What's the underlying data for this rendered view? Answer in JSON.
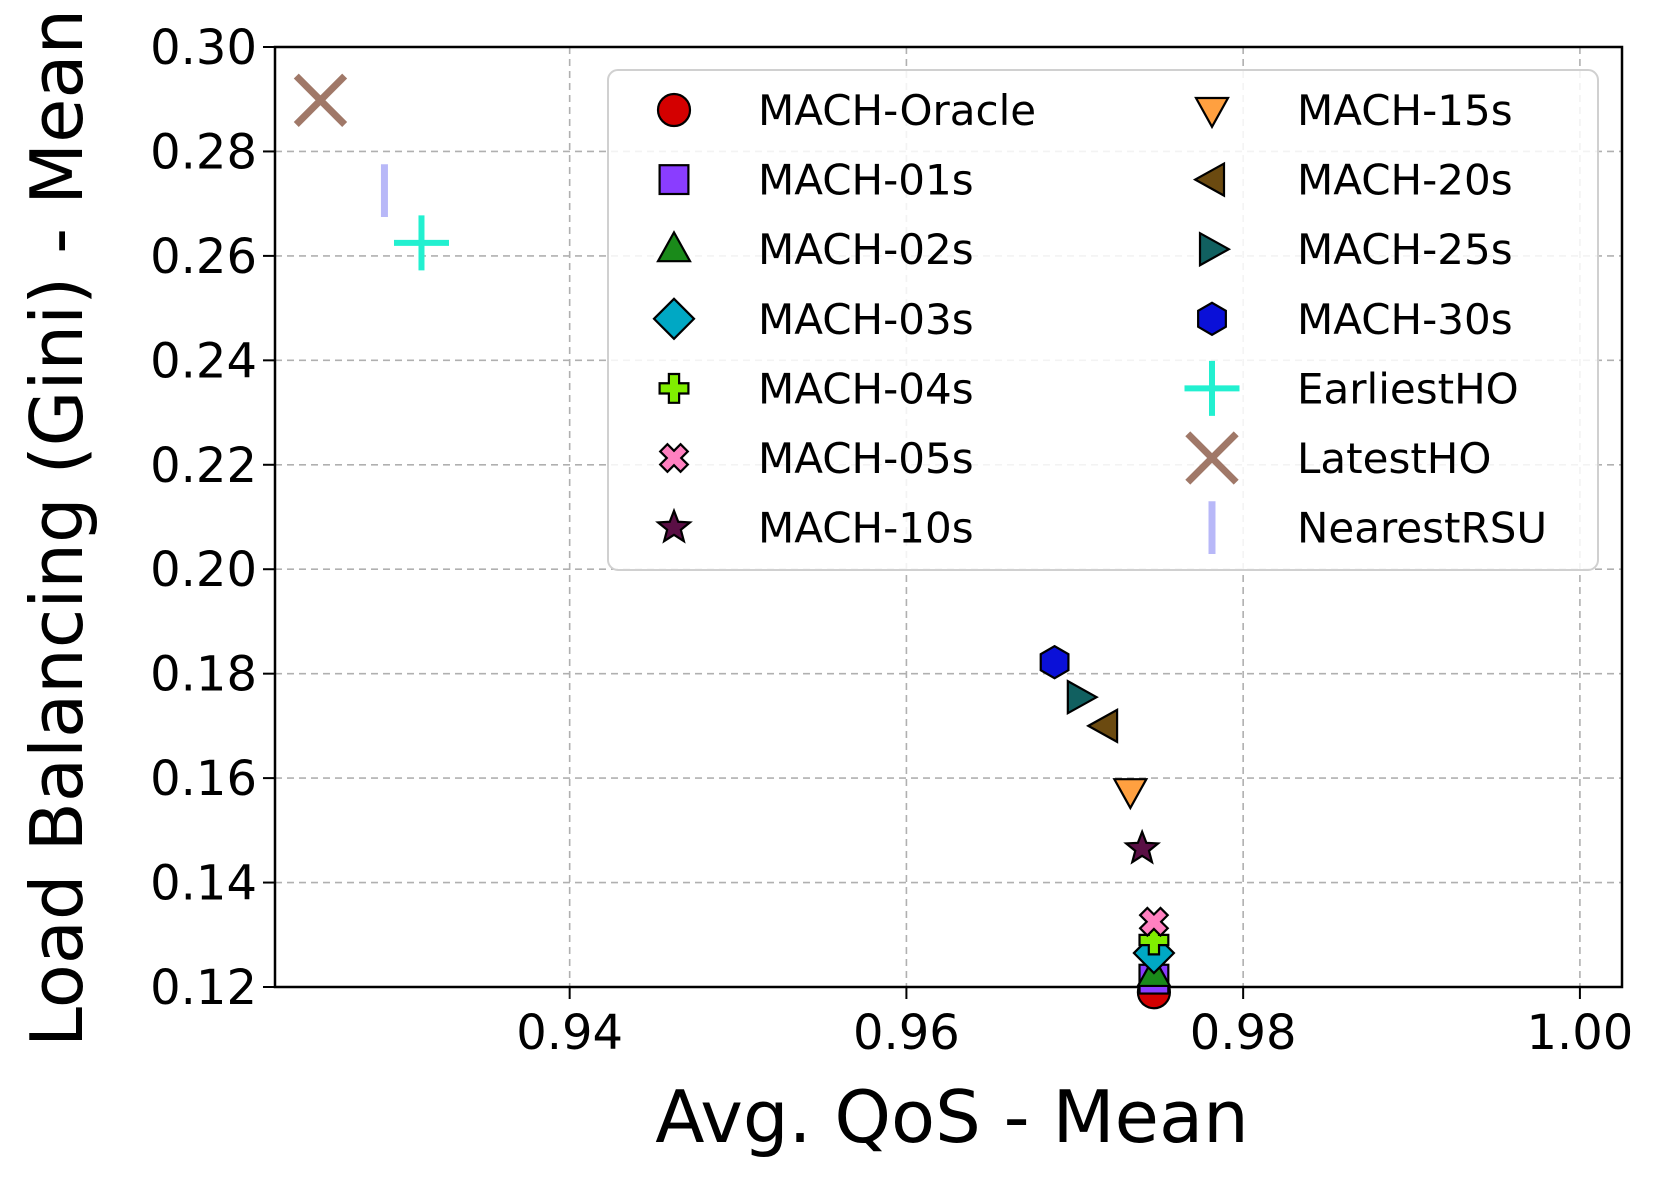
{
  "chart_data": {
    "type": "scatter",
    "title": "",
    "xlabel": "Avg. QoS - Mean",
    "ylabel": "Load Balancing (Gini) - Mean",
    "xlim": [
      0.9225,
      1.0025
    ],
    "ylim": [
      0.12,
      0.3
    ],
    "xticks": [
      0.94,
      0.96,
      0.98,
      1.0
    ],
    "xtick_labels": [
      "0.94",
      "0.96",
      "0.98",
      "1.00"
    ],
    "yticks": [
      0.12,
      0.14,
      0.16,
      0.18,
      0.2,
      0.22,
      0.24,
      0.26,
      0.28,
      0.3
    ],
    "ytick_labels": [
      "0.12",
      "0.14",
      "0.16",
      "0.18",
      "0.20",
      "0.22",
      "0.24",
      "0.26",
      "0.28",
      "0.30"
    ],
    "grid": true,
    "legend_position": "top-right",
    "legend_columns": 2,
    "series": [
      {
        "name": "MACH-Oracle",
        "marker": "circle",
        "color": "#d40000",
        "x": 0.9747,
        "y": 0.119
      },
      {
        "name": "MACH-01s",
        "marker": "square",
        "color": "#8a3dff",
        "x": 0.9747,
        "y": 0.1215
      },
      {
        "name": "MACH-02s",
        "marker": "triangle-up",
        "color": "#1a8a1a",
        "x": 0.9747,
        "y": 0.1225
      },
      {
        "name": "MACH-03s",
        "marker": "diamond",
        "color": "#00a8c4",
        "x": 0.9747,
        "y": 0.1265
      },
      {
        "name": "MACH-04s",
        "marker": "plus-filled",
        "color": "#80ee00",
        "x": 0.9747,
        "y": 0.129
      },
      {
        "name": "MACH-05s",
        "marker": "x-filled",
        "color": "#ff80c0",
        "x": 0.9747,
        "y": 0.1325
      },
      {
        "name": "MACH-10s",
        "marker": "star",
        "color": "#5a0f45",
        "x": 0.974,
        "y": 0.1465
      },
      {
        "name": "MACH-15s",
        "marker": "triangle-down",
        "color": "#ffa040",
        "x": 0.9733,
        "y": 0.1575
      },
      {
        "name": "MACH-20s",
        "marker": "triangle-left",
        "color": "#6b4a10",
        "x": 0.9718,
        "y": 0.17
      },
      {
        "name": "MACH-25s",
        "marker": "triangle-right",
        "color": "#116060",
        "x": 0.9703,
        "y": 0.1755
      },
      {
        "name": "MACH-30s",
        "marker": "hexagon",
        "color": "#0a10d8",
        "x": 0.9688,
        "y": 0.1822
      },
      {
        "name": "EarliestHO",
        "marker": "plus",
        "color": "#22f0d0",
        "x": 0.9312,
        "y": 0.2625
      },
      {
        "name": "LatestHO",
        "marker": "x",
        "color": "#a07868",
        "x": 0.9252,
        "y": 0.2898
      },
      {
        "name": "NearestRSU",
        "marker": "vline",
        "color": "#b8b8f8",
        "x": 0.929,
        "y": 0.2725
      }
    ]
  }
}
